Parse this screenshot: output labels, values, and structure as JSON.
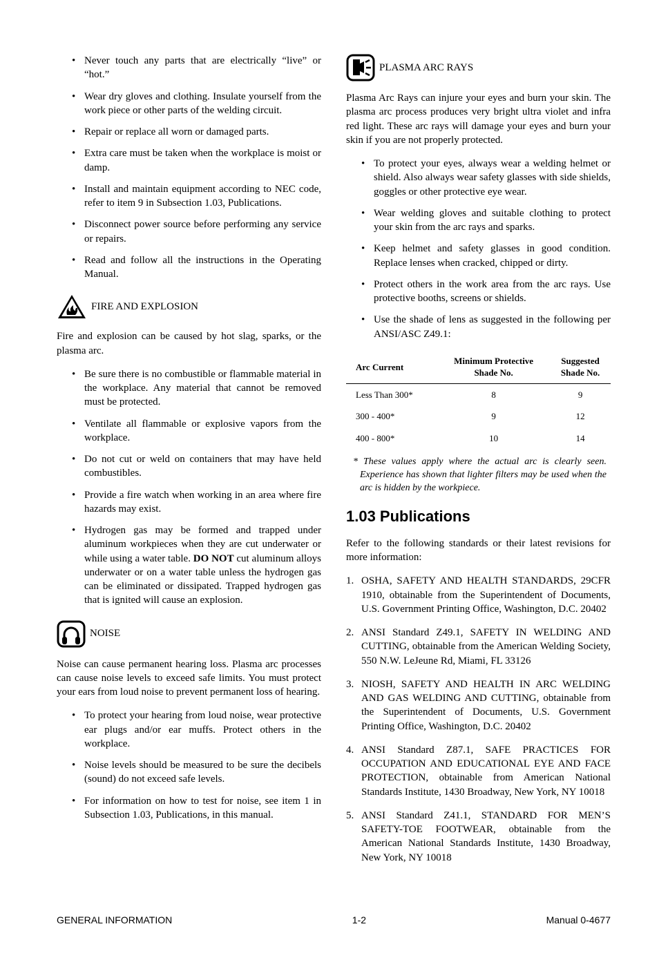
{
  "left": {
    "electric_bullets": [
      "Never touch any parts that are electrically “live” or “hot.”",
      "Wear dry gloves and clothing.  Insulate yourself from the work piece or other parts of the welding circuit.",
      "Repair or replace all worn or damaged parts.",
      "Extra care must be taken when the workplace is moist or damp.",
      "Install and maintain equipment according to NEC code, refer to item 9 in Subsection 1.03, Publications.",
      "Disconnect power source before performing any service or repairs.",
      "Read and follow all the instructions in the Operating Manual."
    ],
    "fire_heading": "FIRE AND EXPLOSION",
    "fire_intro": "Fire and explosion can be caused by hot slag, sparks, or the plasma arc.",
    "fire_bullets_plain": [
      "Be sure there is no combustible or flammable material in the workplace.  Any material that cannot be removed must be protected.",
      "Ventilate all flammable or explosive vapors from the workplace.",
      "Do not cut or weld on containers that may have held combustibles.",
      "Provide a fire watch when working in an area where fire hazards may exist."
    ],
    "fire_bullet_hydrogen_a": "Hydrogen gas may be formed and trapped under aluminum workpieces when they are cut underwater or while using a water table.  ",
    "fire_bullet_hydrogen_b": "DO NOT",
    "fire_bullet_hydrogen_c": " cut aluminum alloys underwater or on a water table unless the hydrogen gas can be eliminated or dissipated. Trapped hydrogen gas that is ignited will cause an explosion.",
    "noise_heading": "NOISE",
    "noise_intro": "Noise can cause permanent hearing loss.  Plasma arc processes can cause noise levels to exceed safe limits.  You must protect your ears from loud noise to prevent permanent loss of hearing.",
    "noise_bullets": [
      "To protect your hearing from loud noise, wear protective ear plugs and/or ear muffs. Protect others in the workplace.",
      "Noise levels should be measured to be sure the decibels (sound) do not exceed safe levels.",
      "For information on how to test for noise, see item 1 in Subsection 1.03, Publications, in this manual."
    ]
  },
  "right": {
    "rays_heading": "PLASMA ARC RAYS",
    "rays_intro": "Plasma Arc Rays can injure your eyes and burn your skin. The plasma arc process produces very bright ultra violet and infra red light.  These arc rays will damage your eyes and burn your skin if you are not properly protected.",
    "rays_bullets": [
      "To protect your eyes, always wear a welding helmet or shield.  Also always wear safety glasses with side shields, goggles or other protective eye wear.",
      "Wear welding gloves and suitable clothing to protect your skin from the arc rays and sparks.",
      "Keep helmet and safety glasses in good condition.  Replace lenses when cracked, chipped or dirty.",
      "Protect others in the work area from the arc rays.  Use protective booths, screens or shields.",
      "Use the shade of lens as suggested in the following per ANSI/ASC Z49.1:"
    ],
    "shade_table": {
      "headers": [
        "Arc Current",
        "Minimum Protective\nShade No.",
        "Suggested\nShade No."
      ],
      "rows": [
        [
          "Less Than 300*",
          "8",
          "9"
        ],
        [
          "300 - 400*",
          "9",
          "12"
        ],
        [
          "400 - 800*",
          "10",
          "14"
        ]
      ]
    },
    "shade_note": "*  These values apply where the actual arc is clearly seen.  Experience has shown that lighter filters may be used when the arc is hidden by the workpiece.",
    "pub_heading": "1.03  Publications",
    "pub_intro": "Refer to the following standards or their latest revisions for more information:",
    "pub_list": [
      "OSHA, SAFETY AND HEALTH STANDARDS, 29CFR 1910, obtainable from the Superintendent of Documents, U.S. Government Printing Office, Washington, D.C. 20402",
      "ANSI Standard Z49.1, SAFETY IN WELDING AND CUTTING, obtainable from the American Welding Society, 550 N.W. LeJeune Rd, Miami, FL  33126",
      "NIOSH, SAFETY AND HEALTH IN ARC WELDING AND GAS WELDING AND CUTTING, obtainable from the Superintendent of Documents, U.S. Government Printing Office, Washington, D.C.  20402",
      "ANSI Standard Z87.1, SAFE PRACTICES FOR OCCUPATION AND EDUCATIONAL EYE AND FACE PROTECTION, obtainable from American National Standards Institute, 1430 Broadway, New York, NY  10018",
      "ANSI Standard Z41.1, STANDARD FOR MEN’S SAFETY-TOE FOOTWEAR, obtainable from the American National Standards Institute, 1430 Broadway, New York, NY  10018"
    ]
  },
  "footer": {
    "left": "GENERAL INFORMATION",
    "center": "1-2",
    "right": "Manual 0-4677"
  }
}
